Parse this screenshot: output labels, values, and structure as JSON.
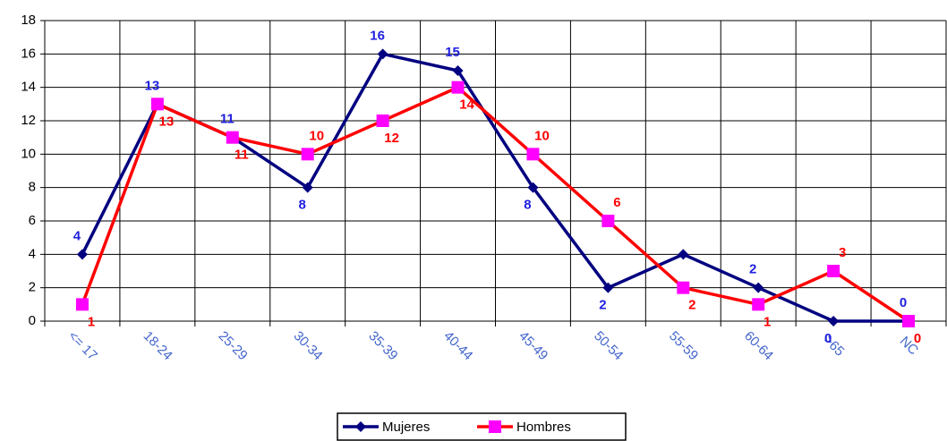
{
  "chart_data": {
    "type": "line",
    "categories": [
      "<= 17",
      "18-24",
      "25-29",
      "30-34",
      "35-39",
      "40-44",
      "45-49",
      "50-54",
      "55-59",
      "60-64",
      ">65",
      "NC"
    ],
    "series": [
      {
        "name": "Mujeres",
        "color": "#000080",
        "label_color": "#1f1fe0",
        "marker": "diamond",
        "marker_color": "#000080",
        "values": [
          4,
          13,
          11,
          8,
          16,
          15,
          8,
          2,
          4,
          2,
          0,
          0
        ],
        "value_labels": [
          "4",
          "13",
          "11",
          "8",
          "16",
          "15",
          "8",
          "2",
          null,
          "2",
          "0",
          "0"
        ]
      },
      {
        "name": "Hombres",
        "color": "#ff0000",
        "label_color": "#ff0000",
        "marker": "square",
        "marker_color": "#ff00ff",
        "values": [
          1,
          13,
          11,
          10,
          12,
          14,
          10,
          6,
          2,
          1,
          3,
          0
        ],
        "value_labels": [
          "1",
          "13",
          "11",
          "10",
          "12",
          "14",
          "10",
          "6",
          "2",
          "1",
          "3",
          "0"
        ]
      }
    ],
    "ylim": [
      0,
      18
    ],
    "yticks": [
      0,
      2,
      4,
      6,
      8,
      10,
      12,
      14,
      16,
      18
    ],
    "grid": true,
    "legend": "bottom"
  }
}
